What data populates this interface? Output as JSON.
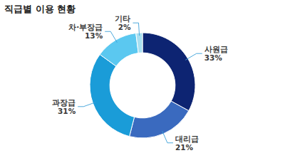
{
  "chart_data": {
    "type": "donut",
    "title": "직급별 이용 현황",
    "categories": [
      "사원급",
      "대리급",
      "과장급",
      "차·부장급",
      "기타"
    ],
    "values": [
      33,
      21,
      31,
      13,
      2
    ],
    "value_labels": [
      "33%",
      "21%",
      "31%",
      "13%",
      "2%"
    ],
    "colors": [
      "#0d2472",
      "#3a6abf",
      "#1a9cd8",
      "#5bc8f0",
      "#a8dff0"
    ],
    "data_labels": true
  }
}
